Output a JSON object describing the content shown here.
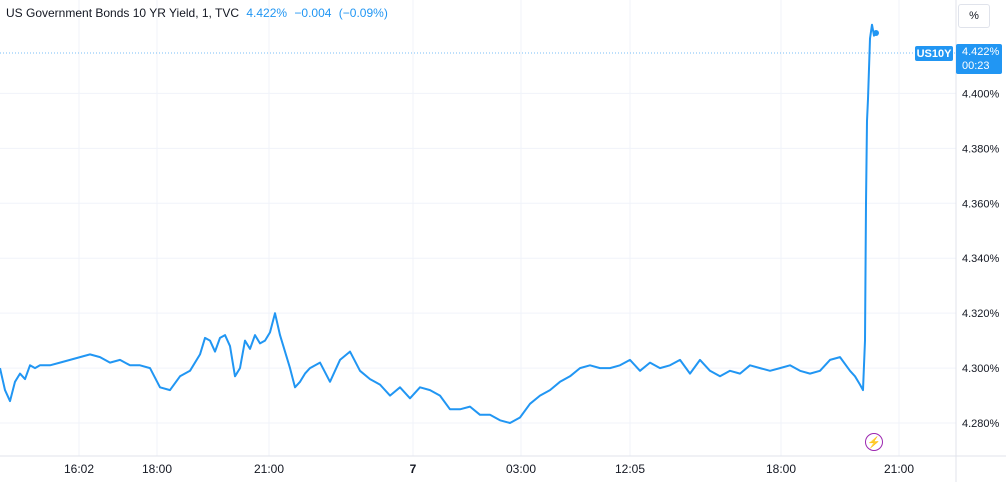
{
  "legend": {
    "title": "US Government Bonds 10 YR Yield, 1, TVC",
    "last": "4.422%",
    "change": "−0.004",
    "change_pct": "(−0.09%)"
  },
  "scale_button": "%",
  "price_tag": {
    "symbol": "US10Y",
    "price": "4.422%",
    "countdown": "00:23"
  },
  "event_icon": "lightning-icon",
  "colors": {
    "line": "#2196f3",
    "grid": "#f0f3fa",
    "axis_text": "#131722",
    "event": "#9c27b0"
  },
  "chart_data": {
    "type": "line",
    "title": "US Government Bonds 10 YR Yield, 1, TVC",
    "xlabel": "",
    "ylabel": "",
    "x_ticks": [
      "16:02",
      "18:00",
      "21:00",
      "7",
      "03:00",
      "12:05",
      "18:00",
      "21:00"
    ],
    "y_ticks": [
      "4.280%",
      "4.300%",
      "4.320%",
      "4.340%",
      "4.360%",
      "4.380%",
      "4.400%",
      "4.422%"
    ],
    "ylim": [
      4.268,
      4.434
    ],
    "grid": true,
    "series": [
      {
        "x": [
          0,
          5,
          10,
          15,
          20,
          25,
          30,
          35,
          40,
          50,
          60,
          70,
          80,
          90,
          100,
          110,
          120,
          130,
          140,
          150,
          160,
          170,
          180,
          190,
          200,
          205,
          210,
          215,
          220,
          225,
          230,
          235,
          240,
          245,
          250,
          255,
          260,
          265,
          270,
          275,
          280,
          285,
          290,
          295,
          300,
          305,
          310,
          320,
          330,
          340,
          350,
          360,
          370,
          380,
          390,
          400,
          410,
          420,
          430,
          440,
          450,
          460,
          470,
          480,
          490,
          500,
          510,
          520,
          530,
          540,
          550,
          560,
          570,
          580,
          590,
          600,
          610,
          620,
          630,
          640,
          650,
          660,
          670,
          680,
          690,
          700,
          710,
          720,
          730,
          740,
          750,
          760,
          770,
          780,
          790,
          800,
          810,
          820,
          830,
          840,
          850,
          855,
          860,
          863,
          865,
          866,
          867,
          868,
          870,
          872,
          874,
          876
        ],
        "y": [
          4.3,
          4.292,
          4.288,
          4.295,
          4.298,
          4.296,
          4.301,
          4.3,
          4.301,
          4.301,
          4.302,
          4.303,
          4.304,
          4.305,
          4.304,
          4.302,
          4.303,
          4.301,
          4.301,
          4.3,
          4.293,
          4.292,
          4.297,
          4.299,
          4.305,
          4.311,
          4.31,
          4.306,
          4.311,
          4.312,
          4.308,
          4.297,
          4.3,
          4.31,
          4.307,
          4.312,
          4.309,
          4.31,
          4.313,
          4.32,
          4.312,
          4.306,
          4.3,
          4.293,
          4.295,
          4.298,
          4.3,
          4.302,
          4.295,
          4.303,
          4.306,
          4.299,
          4.296,
          4.294,
          4.29,
          4.293,
          4.289,
          4.293,
          4.292,
          4.29,
          4.285,
          4.285,
          4.286,
          4.283,
          4.283,
          4.281,
          4.28,
          4.282,
          4.287,
          4.29,
          4.292,
          4.295,
          4.297,
          4.3,
          4.301,
          4.3,
          4.3,
          4.301,
          4.303,
          4.299,
          4.302,
          4.3,
          4.301,
          4.303,
          4.298,
          4.303,
          4.299,
          4.297,
          4.299,
          4.298,
          4.301,
          4.3,
          4.299,
          4.3,
          4.301,
          4.299,
          4.298,
          4.299,
          4.303,
          4.304,
          4.299,
          4.297,
          4.294,
          4.292,
          4.31,
          4.36,
          4.39,
          4.398,
          4.42,
          4.425,
          4.421,
          4.422
        ]
      }
    ]
  }
}
